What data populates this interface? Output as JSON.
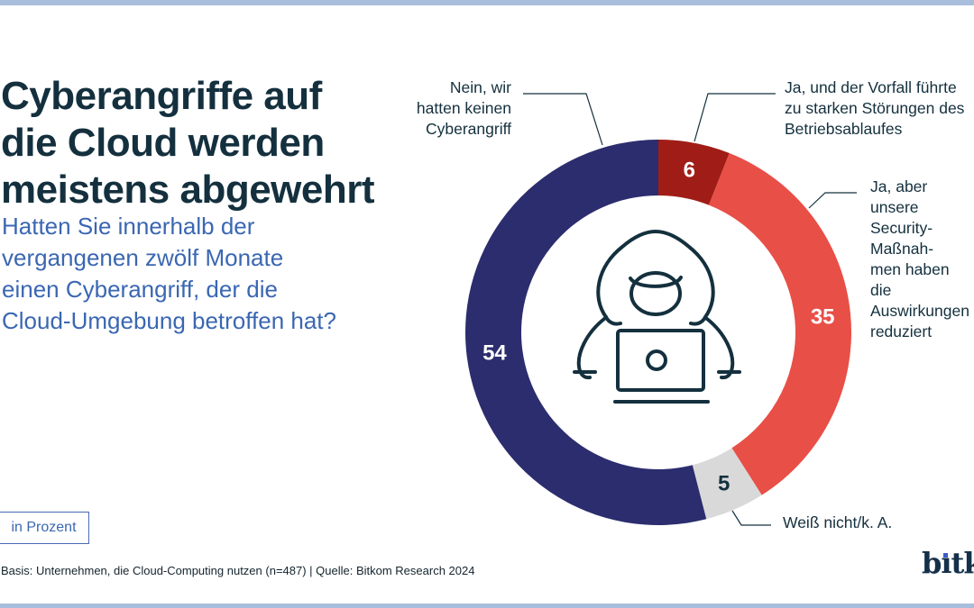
{
  "theme": {
    "accent_bar_color": "#A9BEDC",
    "title_color": "#14303E",
    "question_color": "#3A67B2",
    "background_color": "#FFFFFF"
  },
  "header": {
    "title": "Cyberangriffe auf\ndie Cloud werden\nmeistens abgewehrt",
    "question": "Hatten Sie innerhalb der\nvergangenen zwölf Monate\neinen Cyberangriff, der die\nCloud-Umgebung betroffen hat?"
  },
  "chart_data": {
    "type": "pie",
    "variant": "donut",
    "title": "Cyberangriffe auf die Cloud werden meistens abgewehrt",
    "unit": "Prozent",
    "start_angle_deg": 0,
    "direction": "clockwise",
    "center_icon": "hacker-with-laptop-icon",
    "segments": [
      {
        "label": "Ja, und der Vorfall führte zu starken Störungen des Betriebsablaufes",
        "callout": "Ja, und der Vorfall führte\nzu starken Störungen des\nBetriebsablaufes",
        "value": 6,
        "color": "#A01D17",
        "value_color": "#FFFFFF"
      },
      {
        "label": "Ja, aber unsere Security-Maßnahmen haben die Auswirkungen reduziert",
        "callout": "Ja, aber unsere\nSecurity-Maßnah-\nmen haben die\nAuswirkungen\nreduziert",
        "value": 35,
        "color": "#E84F47",
        "value_color": "#FFFFFF"
      },
      {
        "label": "Weiß nicht/k. A.",
        "callout": "Weiß nicht/k. A.",
        "value": 5,
        "color": "#D9D9D9",
        "value_color": "#14303E"
      },
      {
        "label": "Nein, wir hatten keinen Cyberangriff",
        "callout": "Nein, wir\nhatten keinen\nCyberangriff",
        "value": 54,
        "color": "#2B2D6E",
        "value_color": "#FFFFFF"
      }
    ]
  },
  "legend_badge": {
    "label": "in Prozent"
  },
  "footer": {
    "source_note": "Basis: Unternehmen, die Cloud-Computing nutzen (n=487) | Quelle: Bitkom Research 2024",
    "logo_text": "bitkom"
  }
}
